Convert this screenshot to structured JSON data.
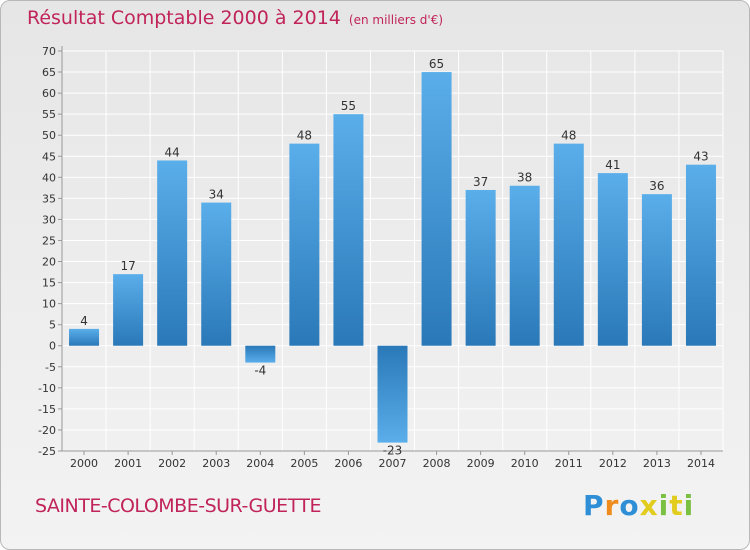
{
  "title": "Résultat Comptable 2000 à 2014",
  "unit_note": "(en milliers d'€)",
  "commune": "SAINTE-COLOMBE-SUR-GUETTE",
  "logo": {
    "letters": [
      "P",
      "r",
      "o",
      "x",
      "i",
      "t",
      "i"
    ],
    "colors": [
      "#2e8fd6",
      "#f08c1e",
      "#2e8fd6",
      "#e2cc1e",
      "#7ac143",
      "#e2cc1e",
      "#7ac143"
    ]
  },
  "colors": {
    "title": "#c0245a",
    "bar_light": "#5aaeea",
    "bar_dark": "#2a78b8",
    "grid": "#ffffff",
    "axis_text": "#333333"
  },
  "chart_data": {
    "type": "bar",
    "title": "Résultat Comptable 2000 à 2014",
    "subtitle": "(en milliers d'€)",
    "xlabel": "",
    "ylabel": "",
    "categories": [
      "2000",
      "2001",
      "2002",
      "2003",
      "2004",
      "2005",
      "2006",
      "2007",
      "2008",
      "2009",
      "2010",
      "2011",
      "2012",
      "2013",
      "2014"
    ],
    "values": [
      4,
      17,
      44,
      34,
      -4,
      48,
      55,
      -23,
      65,
      37,
      38,
      48,
      41,
      36,
      43
    ],
    "ylim": [
      -25,
      70
    ],
    "yticks": [
      -25,
      -20,
      -15,
      -10,
      -5,
      0,
      5,
      10,
      15,
      20,
      25,
      30,
      35,
      40,
      45,
      50,
      55,
      60,
      65,
      70
    ],
    "grid": true
  }
}
